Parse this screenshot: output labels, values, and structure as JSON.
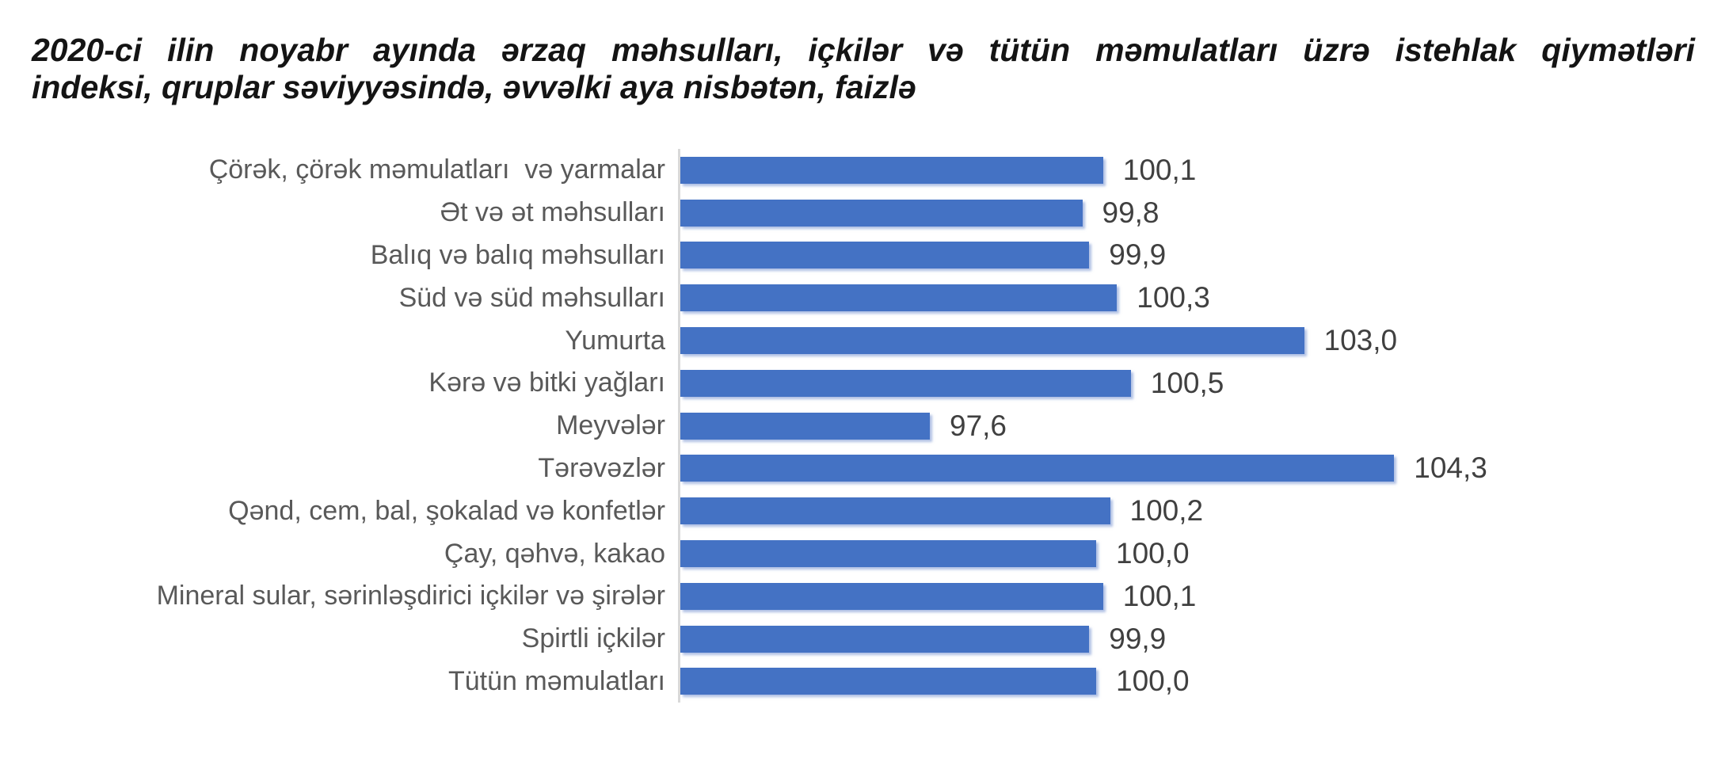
{
  "title": {
    "full": "2020-ci ilin noyabr ayında ərzaq məhsulları, içkilər və tütün məmulatları üzrə istehlak qiymətləri indeksi, qruplar səviyyəsində, əvvəlki aya nisbətən, faizlə",
    "lines": [
      "2020-ci ilin noyabr ayında ərzaq məhsulları, içkilər və tütün məmulatları üzrə istehlak qiymətləri",
      "indeksi, qruplar səviyyəsində, əvvəlki aya nisbətən, faizlə"
    ]
  },
  "chart_data": {
    "type": "bar",
    "orientation": "horizontal",
    "title": "2020-ci ilin noyabr ayında ərzaq məhsulları, içkilər və tütün məmulatları üzrə istehlak qiymətləri indeksi, qruplar səviyyəsində, əvvəlki aya nisbətən, faizlə",
    "xlabel": "",
    "ylabel": "",
    "categories": [
      "Çörək, çörək məmulatları  və yarmalar",
      "Ət və ət məhsulları",
      "Balıq və balıq məhsulları",
      "Süd və süd məhsulları",
      "Yumurta",
      "Kərə və bitki yağları",
      "Meyvələr",
      "Tərəvəzlər",
      "Qənd, cem, bal, şokalad və konfetlər",
      "Çay, qəhvə, kakao",
      "Mineral sular, sərinləşdirici içkilər və şirələr",
      "Spirtli içkilər",
      "Tütün məmulatları"
    ],
    "values": [
      100.1,
      99.8,
      99.9,
      100.3,
      103.0,
      100.5,
      97.6,
      104.3,
      100.2,
      100.0,
      100.1,
      99.9,
      100.0
    ],
    "value_labels": [
      "100,1",
      "99,8",
      "99,9",
      "100,3",
      "103,0",
      "100,5",
      "97,6",
      "104,3",
      "100,2",
      "100,0",
      "100,1",
      "99,9",
      "100,0"
    ],
    "xlim": [
      94,
      106
    ],
    "grid": false,
    "legend": false,
    "bar_color": "#4472C4",
    "axis_color": "#D9D9D9",
    "label_color": "#595959",
    "value_color": "#404040"
  }
}
